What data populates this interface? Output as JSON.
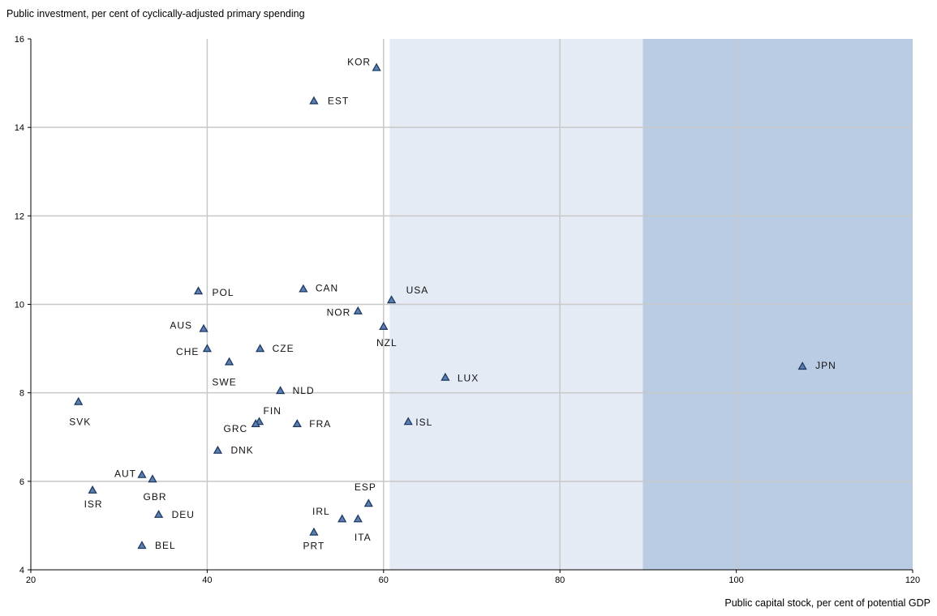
{
  "chart_data": {
    "type": "scatter",
    "ylabel": "Public investment, per cent of cyclically-adjusted primary spending",
    "xlabel": "Public capital stock, per cent of potential GDP",
    "xlim": [
      20,
      120
    ],
    "ylim": [
      4,
      16
    ],
    "xticks": [
      "20",
      "40",
      "60",
      "80",
      "100",
      "120"
    ],
    "yticks": [
      "4",
      "6",
      "8",
      "10",
      "12",
      "14",
      "16"
    ],
    "grid": true,
    "shaded_regions": [
      {
        "x_from": 60.7,
        "x_to": 89.4,
        "color": "#e4ebf5"
      },
      {
        "x_from": 89.4,
        "x_to": 120,
        "color": "#b9cce4"
      }
    ],
    "marker_color": "#1f3a63",
    "marker_fill": "#5b7fb0",
    "points": [
      {
        "label": "KOR",
        "x": 59.2,
        "y": 15.35
      },
      {
        "label": "EST",
        "x": 52.1,
        "y": 14.6
      },
      {
        "label": "POL",
        "x": 39.0,
        "y": 10.3
      },
      {
        "label": "CAN",
        "x": 50.9,
        "y": 10.35
      },
      {
        "label": "USA",
        "x": 60.9,
        "y": 10.1
      },
      {
        "label": "NOR",
        "x": 57.1,
        "y": 9.85
      },
      {
        "label": "AUS",
        "x": 39.6,
        "y": 9.45
      },
      {
        "label": "NZL",
        "x": 60.0,
        "y": 9.5
      },
      {
        "label": "CHE",
        "x": 40.0,
        "y": 9.0
      },
      {
        "label": "CZE",
        "x": 46.0,
        "y": 9.0
      },
      {
        "label": "SWE",
        "x": 42.5,
        "y": 8.7
      },
      {
        "label": "LUX",
        "x": 67.0,
        "y": 8.35
      },
      {
        "label": "JPN",
        "x": 107.5,
        "y": 8.6
      },
      {
        "label": "NLD",
        "x": 48.3,
        "y": 8.05
      },
      {
        "label": "SVK",
        "x": 25.4,
        "y": 7.8
      },
      {
        "label": "FIN",
        "x": 45.9,
        "y": 7.35
      },
      {
        "label": "GRC",
        "x": 45.5,
        "y": 7.3
      },
      {
        "label": "FRA",
        "x": 50.2,
        "y": 7.3
      },
      {
        "label": "ISL",
        "x": 62.8,
        "y": 7.35
      },
      {
        "label": "DNK",
        "x": 41.2,
        "y": 6.7
      },
      {
        "label": "AUT",
        "x": 32.6,
        "y": 6.15
      },
      {
        "label": "GBR",
        "x": 33.8,
        "y": 6.05
      },
      {
        "label": "ISR",
        "x": 27.0,
        "y": 5.8
      },
      {
        "label": "ESP",
        "x": 58.3,
        "y": 5.5
      },
      {
        "label": "DEU",
        "x": 34.5,
        "y": 5.25
      },
      {
        "label": "IRL",
        "x": 55.3,
        "y": 5.15
      },
      {
        "label": "ITA",
        "x": 57.1,
        "y": 5.15
      },
      {
        "label": "PRT",
        "x": 52.1,
        "y": 4.85
      },
      {
        "label": "BEL",
        "x": 32.6,
        "y": 4.55
      }
    ]
  }
}
